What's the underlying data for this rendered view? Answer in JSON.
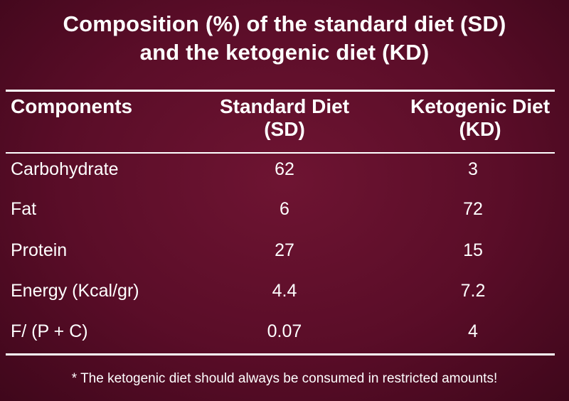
{
  "title": {
    "line1": "Composition (%) of the standard diet (SD)",
    "line2": "and the ketogenic diet (KD)"
  },
  "table": {
    "headers": [
      {
        "line1": "Components",
        "line2": ""
      },
      {
        "line1": "Standard Diet",
        "line2": "(SD)"
      },
      {
        "line1": "Ketogenic Diet",
        "line2": "(KD)"
      }
    ],
    "rows": [
      {
        "component": "Carbohydrate",
        "sd": "62",
        "kd": "3"
      },
      {
        "component": "Fat",
        "sd": "6",
        "kd": "72"
      },
      {
        "component": "Protein",
        "sd": "27",
        "kd": "15"
      },
      {
        "component": "Energy (Kcal/gr)",
        "sd": "4.4",
        "kd": "7.2"
      },
      {
        "component": "F/ (P + C)",
        "sd": "0.07",
        "kd": "4"
      }
    ]
  },
  "footnote": "* The ketogenic diet should always be consumed in restricted amounts!",
  "colors": {
    "background": "#5a0d28",
    "text": "#ffffff"
  }
}
